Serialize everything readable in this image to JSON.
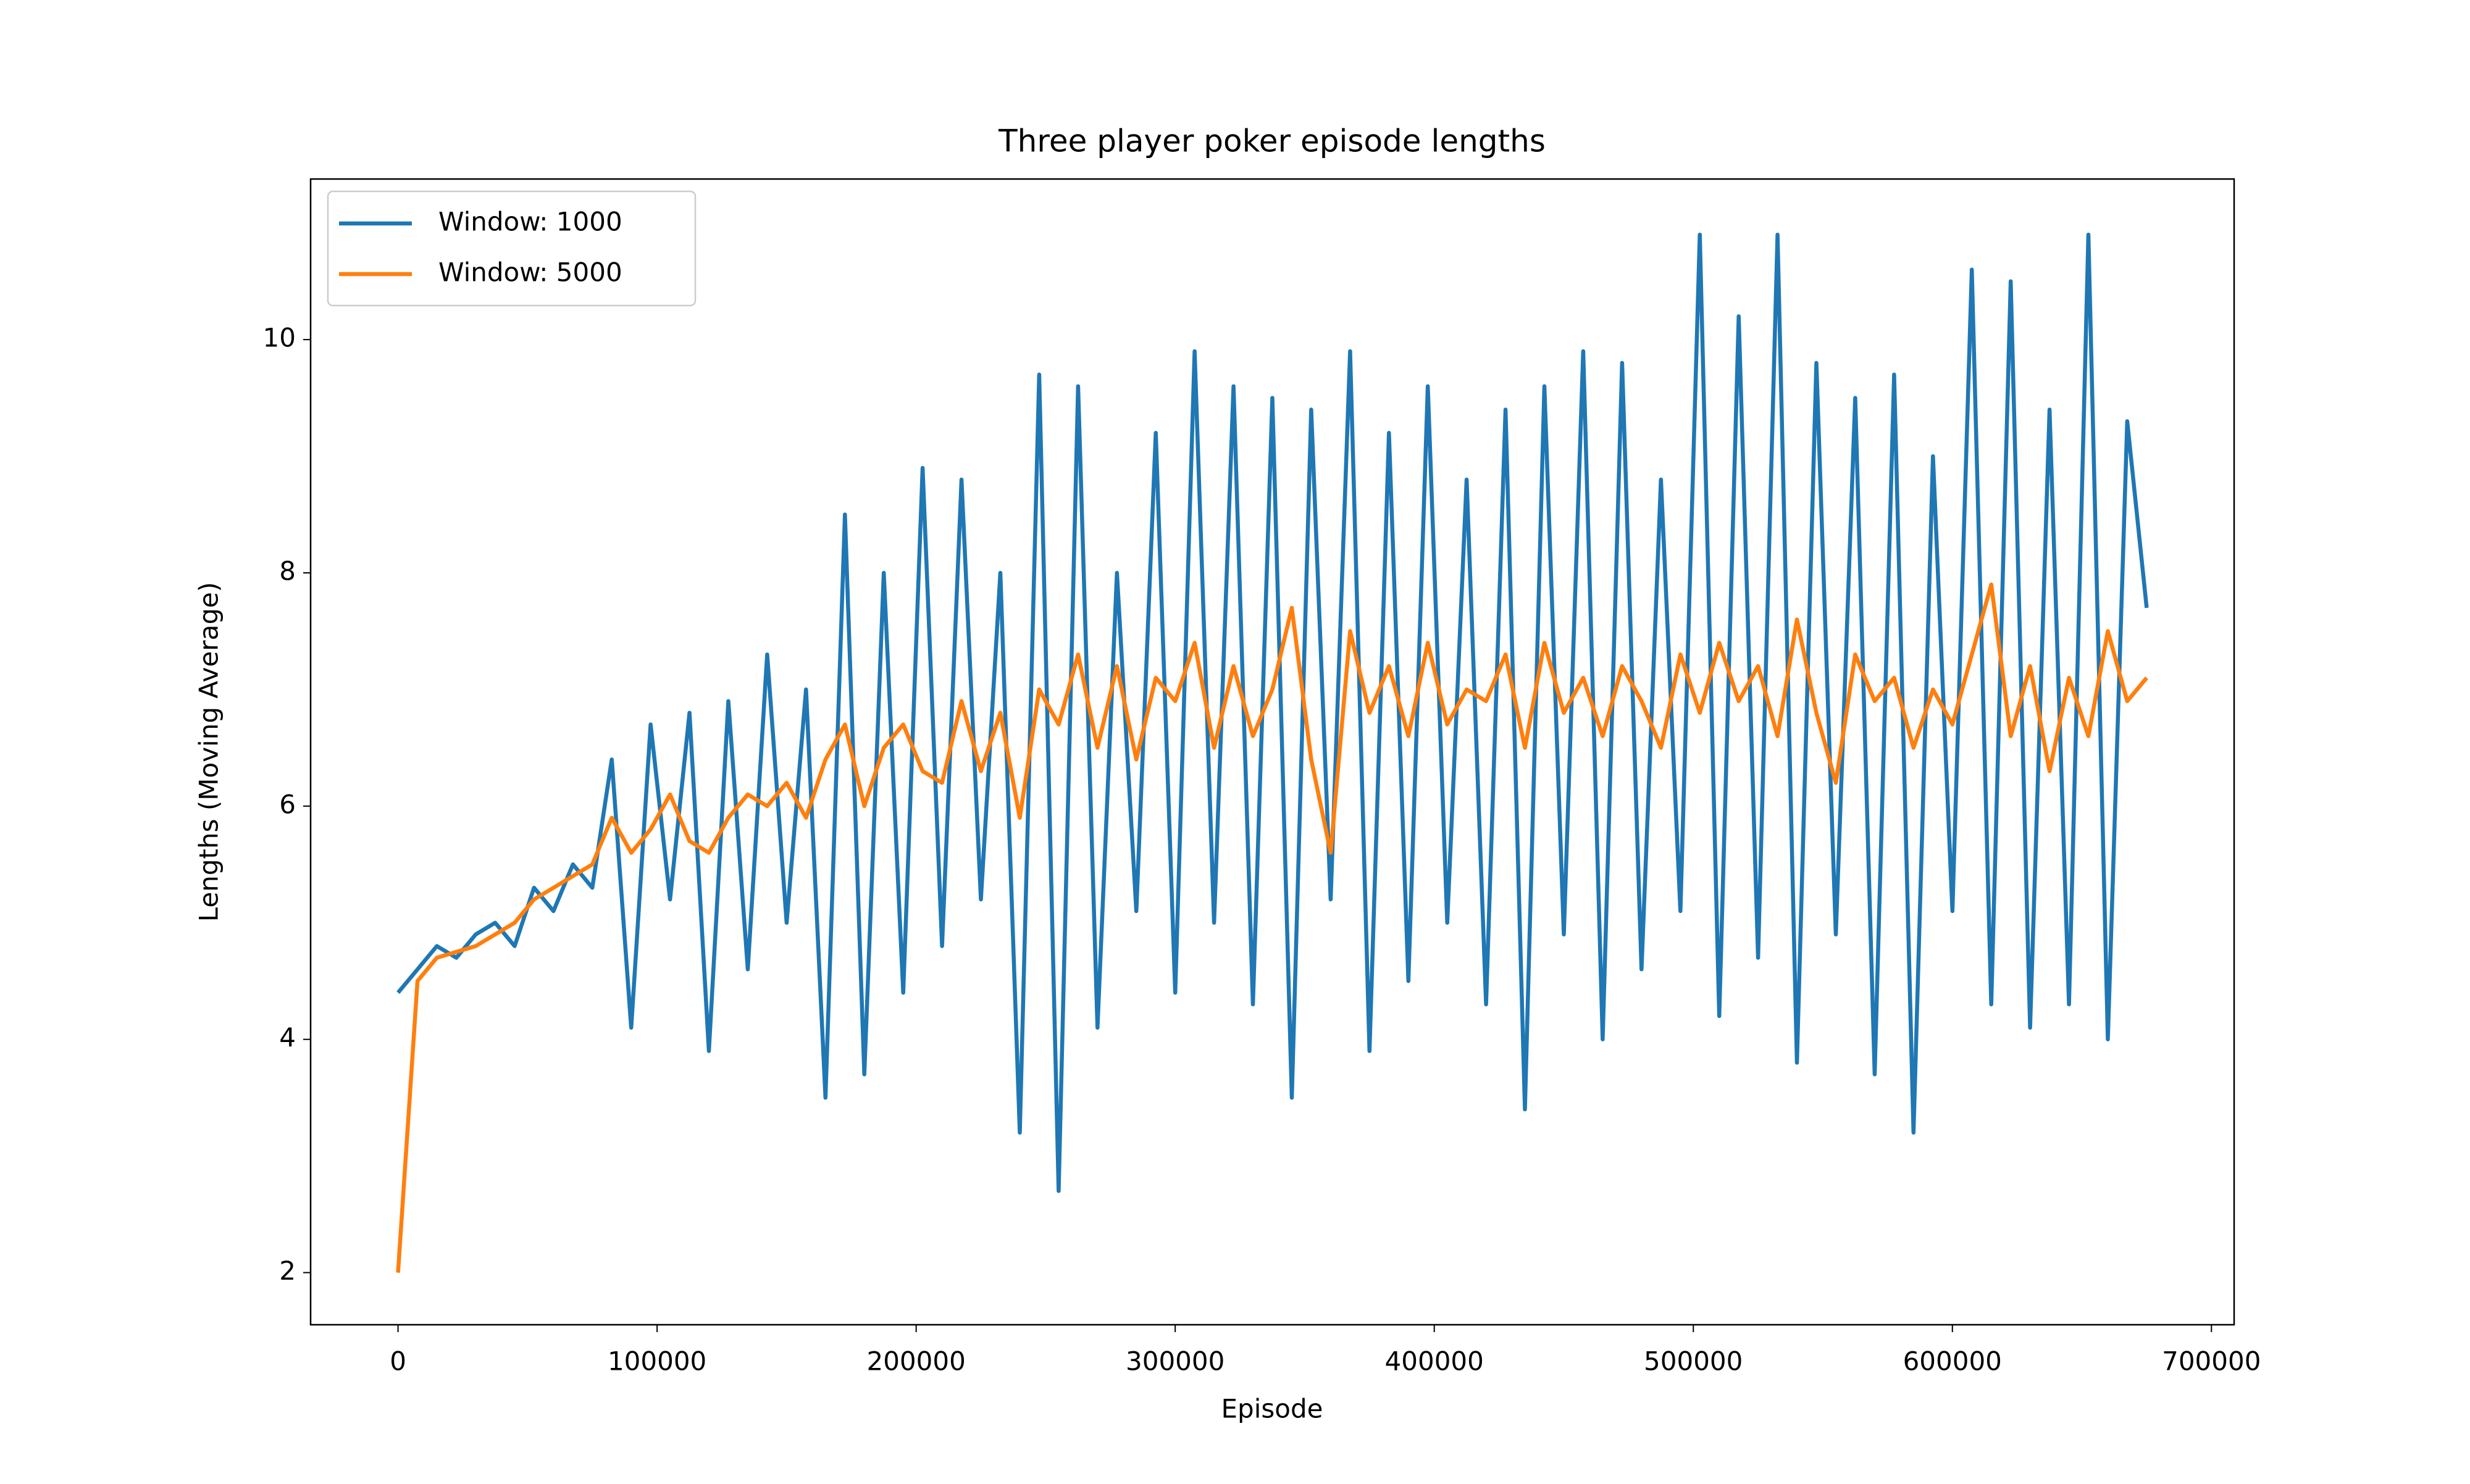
{
  "chart_data": {
    "type": "line",
    "title": "Three player poker episode lengths",
    "x_label": "Episode",
    "y_label": "Lengths (Moving Average)",
    "x": [
      0,
      7500,
      15000,
      22500,
      30000,
      37500,
      45000,
      52500,
      60000,
      67500,
      75000,
      82500,
      90000,
      97500,
      105000,
      112500,
      120000,
      127500,
      135000,
      142500,
      150000,
      157500,
      165000,
      172500,
      180000,
      187500,
      195000,
      202500,
      210000,
      217500,
      225000,
      232500,
      240000,
      247500,
      255000,
      262500,
      270000,
      277500,
      285000,
      292500,
      300000,
      307500,
      315000,
      322500,
      330000,
      337500,
      345000,
      352500,
      360000,
      367500,
      375000,
      382500,
      390000,
      397500,
      405000,
      412500,
      420000,
      427500,
      435000,
      442500,
      450000,
      457500,
      465000,
      472500,
      480000,
      487500,
      495000,
      502500,
      510000,
      517500,
      525000,
      532500,
      540000,
      547500,
      555000,
      562500,
      570000,
      577500,
      585000,
      592500,
      600000,
      607500,
      615000,
      622500,
      630000,
      637500,
      645000,
      652500,
      660000,
      667500,
      675000
    ],
    "series": [
      {
        "name": "Window: 1000",
        "color": "#1f77b4",
        "values": [
          4.4,
          4.6,
          4.8,
          4.7,
          4.9,
          5.0,
          4.8,
          5.3,
          5.1,
          5.5,
          5.3,
          6.4,
          4.1,
          6.7,
          5.2,
          6.8,
          3.9,
          6.9,
          4.6,
          7.3,
          5.0,
          7.0,
          3.5,
          8.5,
          3.7,
          8.0,
          4.4,
          8.9,
          4.8,
          8.8,
          5.2,
          8.0,
          3.2,
          9.7,
          2.7,
          9.6,
          4.1,
          8.0,
          5.1,
          9.2,
          4.4,
          9.9,
          5.0,
          9.6,
          4.3,
          9.5,
          3.5,
          9.4,
          5.2,
          9.9,
          3.9,
          9.2,
          4.5,
          9.6,
          5.0,
          8.8,
          4.3,
          9.4,
          3.4,
          9.6,
          4.9,
          9.9,
          4.0,
          9.8,
          4.6,
          8.8,
          5.1,
          10.9,
          4.2,
          10.2,
          4.7,
          10.9,
          3.8,
          9.8,
          4.9,
          9.5,
          3.7,
          9.7,
          3.2,
          9.0,
          5.1,
          10.6,
          4.3,
          10.5,
          4.1,
          9.4,
          4.3,
          10.9,
          4.0,
          9.3,
          7.7
        ]
      },
      {
        "name": "Window: 5000",
        "color": "#ff7f0e",
        "values": [
          2.0,
          4.5,
          4.7,
          4.75,
          4.8,
          4.9,
          5.0,
          5.2,
          5.3,
          5.4,
          5.5,
          5.9,
          5.6,
          5.8,
          6.1,
          5.7,
          5.6,
          5.9,
          6.1,
          6.0,
          6.2,
          5.9,
          6.4,
          6.7,
          6.0,
          6.5,
          6.7,
          6.3,
          6.2,
          6.9,
          6.3,
          6.8,
          5.9,
          7.0,
          6.7,
          7.3,
          6.5,
          7.2,
          6.4,
          7.1,
          6.9,
          7.4,
          6.5,
          7.2,
          6.6,
          7.0,
          7.7,
          6.4,
          5.6,
          7.5,
          6.8,
          7.2,
          6.6,
          7.4,
          6.7,
          7.0,
          6.9,
          7.3,
          6.5,
          7.4,
          6.8,
          7.1,
          6.6,
          7.2,
          6.9,
          6.5,
          7.3,
          6.8,
          7.4,
          6.9,
          7.2,
          6.6,
          7.6,
          6.8,
          6.2,
          7.3,
          6.9,
          7.1,
          6.5,
          7.0,
          6.7,
          7.3,
          7.9,
          6.6,
          7.2,
          6.3,
          7.1,
          6.6,
          7.5,
          6.9,
          7.1
        ]
      }
    ],
    "xlim": [
      -33750,
      708750
    ],
    "ylim": [
      1.553,
      11.377
    ],
    "xticks": [
      0,
      100000,
      200000,
      300000,
      400000,
      500000,
      600000,
      700000
    ],
    "yticks": [
      2,
      4,
      6,
      8,
      10
    ],
    "legend": "upper left",
    "grid": false
  }
}
